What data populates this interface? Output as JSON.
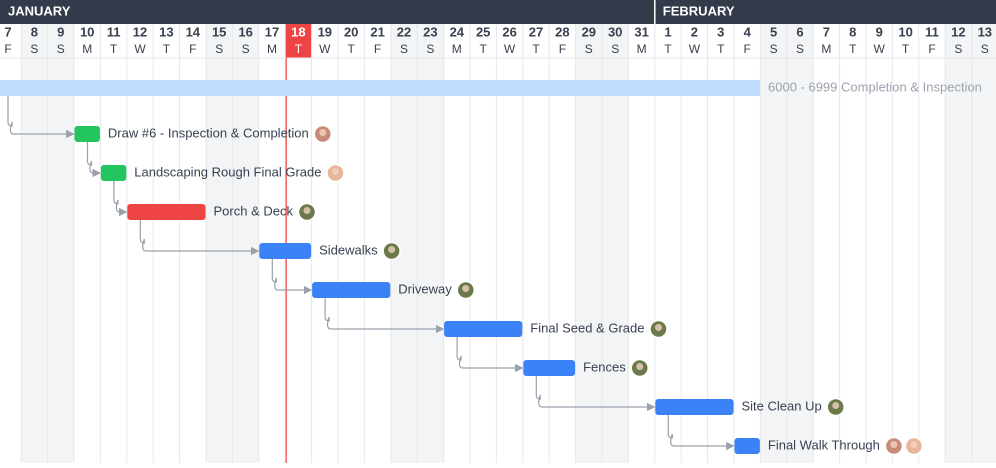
{
  "months": [
    "JANUARY",
    "FEBRUARY"
  ],
  "days": [
    {
      "day": 7,
      "weekday": "F"
    },
    {
      "day": 8,
      "weekday": "S"
    },
    {
      "day": 9,
      "weekday": "S"
    },
    {
      "day": 10,
      "weekday": "M"
    },
    {
      "day": 11,
      "weekday": "T"
    },
    {
      "day": 12,
      "weekday": "W"
    },
    {
      "day": 13,
      "weekday": "T"
    },
    {
      "day": 14,
      "weekday": "F"
    },
    {
      "day": 15,
      "weekday": "S"
    },
    {
      "day": 16,
      "weekday": "S"
    },
    {
      "day": 17,
      "weekday": "M"
    },
    {
      "day": 18,
      "weekday": "T"
    },
    {
      "day": 19,
      "weekday": "W"
    },
    {
      "day": 20,
      "weekday": "T"
    },
    {
      "day": 21,
      "weekday": "F"
    },
    {
      "day": 22,
      "weekday": "S"
    },
    {
      "day": 23,
      "weekday": "S"
    },
    {
      "day": 24,
      "weekday": "M"
    },
    {
      "day": 25,
      "weekday": "T"
    },
    {
      "day": 26,
      "weekday": "W"
    },
    {
      "day": 27,
      "weekday": "T"
    },
    {
      "day": 28,
      "weekday": "F"
    },
    {
      "day": 29,
      "weekday": "S"
    },
    {
      "day": 30,
      "weekday": "S"
    },
    {
      "day": 31,
      "weekday": "M"
    },
    {
      "day": 1,
      "weekday": "T"
    },
    {
      "day": 2,
      "weekday": "W"
    },
    {
      "day": 3,
      "weekday": "T"
    },
    {
      "day": 4,
      "weekday": "F"
    },
    {
      "day": 5,
      "weekday": "S"
    },
    {
      "day": 6,
      "weekday": "S"
    },
    {
      "day": 7,
      "weekday": "M"
    },
    {
      "day": 8,
      "weekday": "T"
    },
    {
      "day": 9,
      "weekday": "W"
    },
    {
      "day": 10,
      "weekday": "T"
    },
    {
      "day": 11,
      "weekday": "F"
    },
    {
      "day": 12,
      "weekday": "S"
    },
    {
      "day": 13,
      "weekday": "S"
    }
  ],
  "summary": {
    "label": "6000 - 6999 Completion & Inspection"
  },
  "tasks": [
    {
      "name": "Draw #6 - Inspection & Completion"
    },
    {
      "name": "Landscaping Rough Final Grade"
    },
    {
      "name": "Porch & Deck"
    },
    {
      "name": "Sidewalks"
    },
    {
      "name": "Driveway"
    },
    {
      "name": "Final Seed & Grade"
    },
    {
      "name": "Fences"
    },
    {
      "name": "Site Clean Up"
    },
    {
      "name": "Final Walk Through"
    }
  ]
}
